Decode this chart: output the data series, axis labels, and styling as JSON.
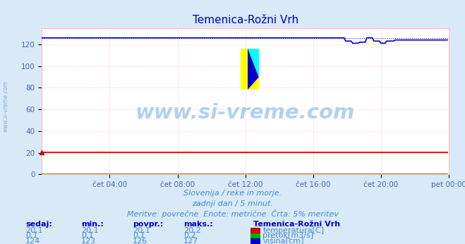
{
  "title": "Temenica-Rožni Vrh",
  "bg_color": "#d8eaf8",
  "plot_bg_color": "#ffffff",
  "grid_color": "#ffbbbb",
  "title_color": "#0000cc",
  "axis_color": "#4466aa",
  "text_color": "#4488cc",
  "xlim": [
    0,
    288
  ],
  "ylim": [
    0,
    135
  ],
  "yticks": [
    0,
    20,
    40,
    60,
    80,
    100,
    120
  ],
  "xtick_labels": [
    "čet 04:00",
    "čet 08:00",
    "čet 12:00",
    "čet 16:00",
    "čet 20:00",
    "pet 00:00"
  ],
  "xtick_positions": [
    48,
    96,
    144,
    192,
    240,
    288
  ],
  "n_points": 288,
  "temp_value": 20.1,
  "flow_value": 0.1,
  "height_base": 126.0,
  "temp_color": "#cc0000",
  "flow_color": "#00aa00",
  "height_color": "#0000cc",
  "watermark_text": "www.si-vreme.com",
  "watermark_color": "#aaccee",
  "sidewater_text": "www.si-vreme.com",
  "sidewater_color": "#88aacc",
  "footer_line1": "Slovenija / reke in morje.",
  "footer_line2": "zadnji dan / 5 minut.",
  "footer_line3": "Meritve: povrečne  Enote: metrične  Črta: 5% meritev",
  "table_headers": [
    "sedaj:",
    "min.:",
    "povpr.:",
    "maks.:"
  ],
  "table_row1": [
    "20,1",
    "20,1",
    "20,1",
    "20,2"
  ],
  "table_row2": [
    "0,1",
    "0,1",
    "0,1",
    "0,2"
  ],
  "table_row3": [
    "124",
    "123",
    "126",
    "127"
  ],
  "legend_title": "Temenica-Rožni Vrh",
  "legend_labels": [
    "temperatura[C]",
    "pretok[m3/s]",
    "višina[cm]"
  ],
  "legend_colors": [
    "#cc0000",
    "#00aa00",
    "#0000cc"
  ]
}
